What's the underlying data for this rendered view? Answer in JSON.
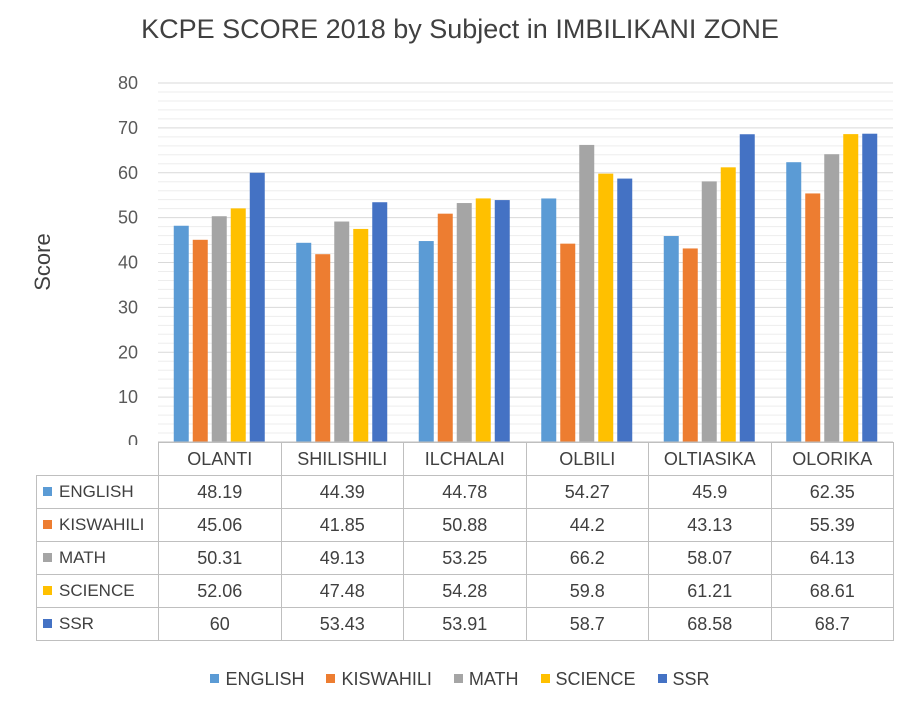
{
  "chart_data": {
    "type": "bar",
    "title": "KCPE SCORE 2018 by Subject in IMBILIKANI ZONE",
    "xlabel": "",
    "ylabel": "Score",
    "ylim": [
      0,
      80
    ],
    "yticks": [
      0,
      10,
      20,
      30,
      40,
      50,
      60,
      70,
      80
    ],
    "grid": true,
    "legend_position": "bottom",
    "data_table": true,
    "categories": [
      "OLANTI",
      "SHILISHILI",
      "ILCHALAI",
      "OLBILI",
      "OLTIASIKA",
      "OLORIKA"
    ],
    "series": [
      {
        "name": "ENGLISH",
        "color": "#5B9BD5",
        "values": [
          48.19,
          44.39,
          44.78,
          54.27,
          45.9,
          62.35
        ]
      },
      {
        "name": "KISWAHILI",
        "color": "#ED7D31",
        "values": [
          45.06,
          41.85,
          50.88,
          44.2,
          43.13,
          55.39
        ]
      },
      {
        "name": "MATH",
        "color": "#A5A5A5",
        "values": [
          50.31,
          49.13,
          53.25,
          66.2,
          58.07,
          64.13
        ]
      },
      {
        "name": "SCIENCE",
        "color": "#FFC000",
        "values": [
          52.06,
          47.48,
          54.28,
          59.8,
          61.21,
          68.61
        ]
      },
      {
        "name": "SSR",
        "color": "#4472C4",
        "values": [
          60,
          53.43,
          53.91,
          58.7,
          68.58,
          68.7
        ]
      }
    ]
  }
}
